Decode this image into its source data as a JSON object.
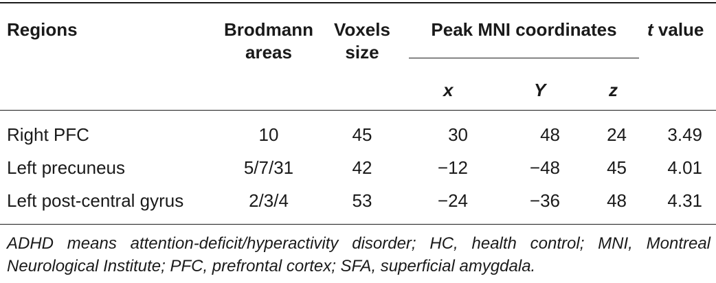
{
  "header": {
    "regions": "Regions",
    "brodmann": "Brodmann areas",
    "voxels": "Voxels size",
    "peak_mni": "Peak MNI coordinates",
    "t_italic": "t",
    "t_rest": " value",
    "x": "x",
    "y": "Y",
    "z": "z"
  },
  "rows": [
    {
      "region": "Right PFC",
      "brodmann": "10",
      "voxels": "45",
      "x": "30",
      "y": "48",
      "z": "24",
      "t": "3.49"
    },
    {
      "region": "Left precuneus",
      "brodmann": "5/7/31",
      "voxels": "42",
      "x": "−12",
      "y": "−48",
      "z": "45",
      "t": "4.01"
    },
    {
      "region": "Left post-central gyrus",
      "brodmann": "2/3/4",
      "voxels": "53",
      "x": "−24",
      "y": "−36",
      "z": "48",
      "t": "4.31"
    }
  ],
  "footnote": "ADHD means attention-deficit/hyperactivity disorder; HC, health control; MNI, Montreal Neurological Institute; PFC, prefrontal cortex; SFA, superficial amygdala."
}
